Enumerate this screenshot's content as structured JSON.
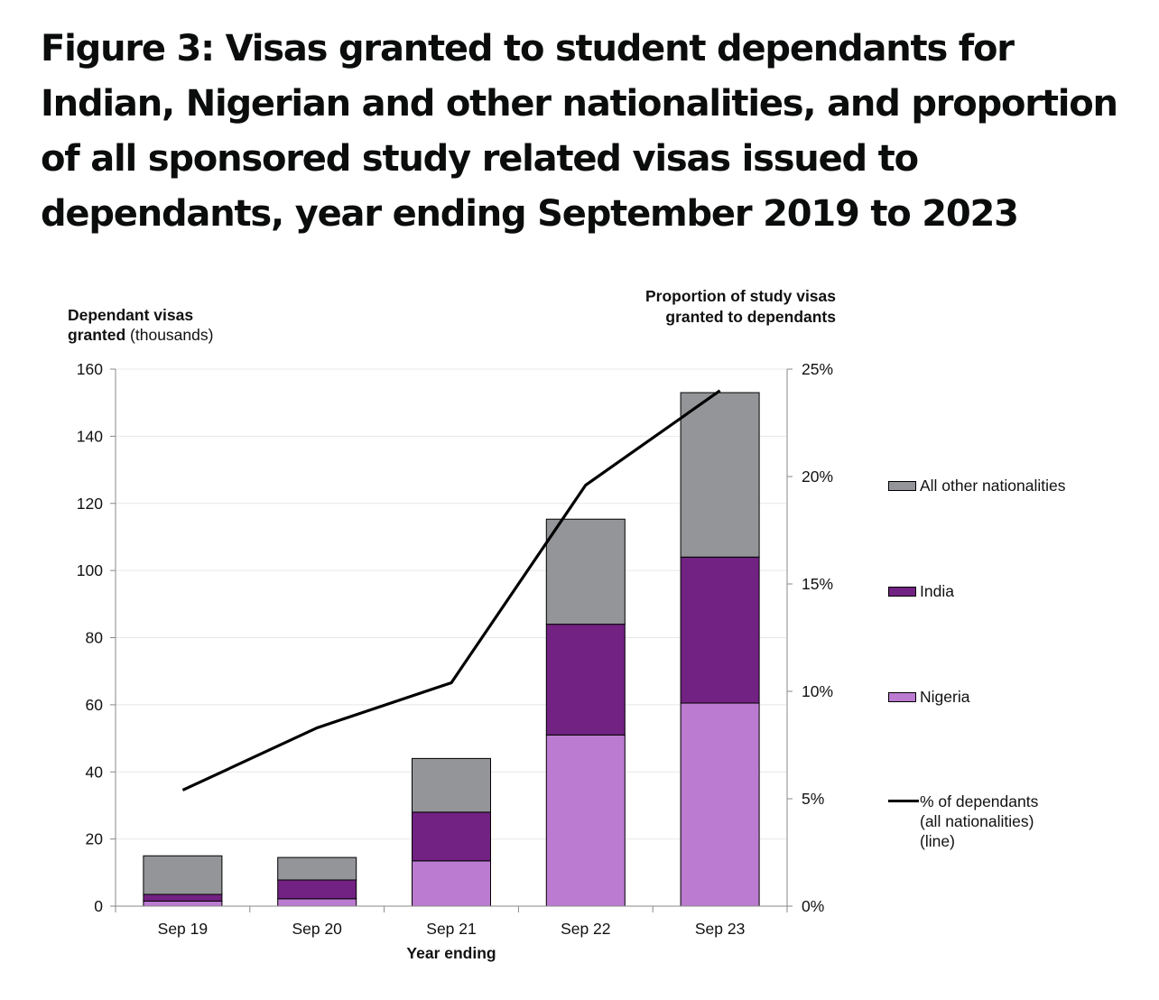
{
  "title": {
    "line1": "Figure 3: Visas granted to student dependants for",
    "line2": "Indian, Nigerian and other nationalities, and proportion",
    "line3": "of all sponsored study related visas issued to",
    "line4": "dependants, year ending September 2019 to 2023"
  },
  "chart_data": {
    "type": "bar",
    "stacked": true,
    "categories": [
      "Sep 19",
      "Sep 20",
      "Sep 21",
      "Sep 22",
      "Sep 23"
    ],
    "xlabel": "Year ending",
    "ylabel_bold_1": "Dependant visas",
    "ylabel_bold_2": "granted",
    "ylabel_regular": " (thousands)",
    "y2label": "Proportion of study visas granted to dependants",
    "ylim": [
      0,
      160
    ],
    "yticks": [
      "0",
      "20",
      "40",
      "60",
      "80",
      "100",
      "120",
      "140",
      "160"
    ],
    "y2lim": [
      0,
      25
    ],
    "y2ticks": [
      "0%",
      "5%",
      "10%",
      "15%",
      "20%",
      "25%"
    ],
    "grid": true,
    "legend_position": "right",
    "series": [
      {
        "name": "Nigeria",
        "color": "#bb7bd0",
        "values": [
          1.5,
          2.2,
          13.5,
          51,
          60.5
        ]
      },
      {
        "name": "India",
        "color": "#722282",
        "values": [
          2,
          5.6,
          14.5,
          33,
          43.5
        ]
      },
      {
        "name": "All other nationalities",
        "color": "#939598",
        "values": [
          11.5,
          6.7,
          16,
          31.3,
          49
        ]
      }
    ],
    "line_series": {
      "name": "% of dependants (all nationalities) (line)",
      "color": "#000000",
      "axis": "right",
      "values": [
        5.4,
        8.3,
        10.4,
        19.6,
        24.0
      ]
    }
  },
  "legend": {
    "other": "All other nationalities",
    "india": "India",
    "nigeria": "Nigeria",
    "line_1": "% of dependants",
    "line_2": "(all nationalities)",
    "line_3": "(line)"
  }
}
